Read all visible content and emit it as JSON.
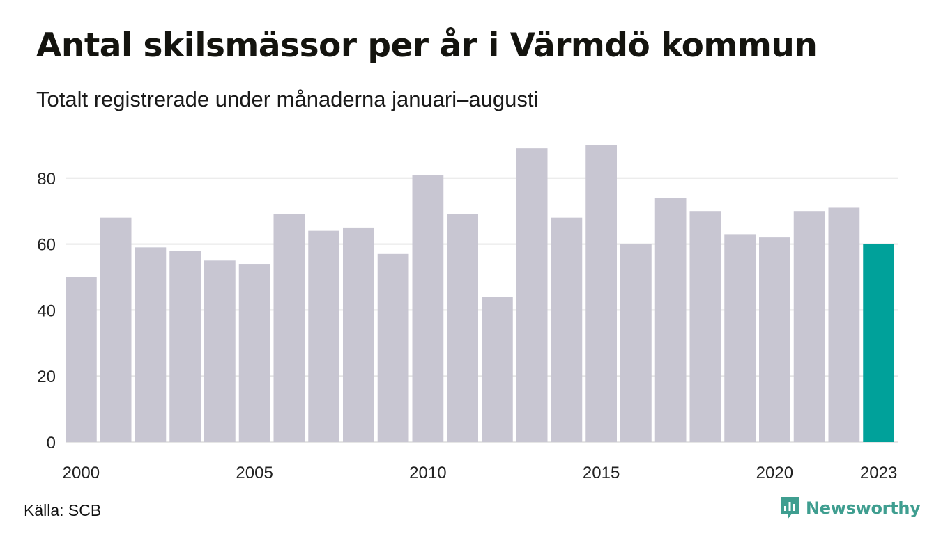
{
  "header": {
    "title": "Antal skilsmässor per år i Värmdö kommun",
    "subtitle": "Totalt registrerade under månaderna januari–augusti"
  },
  "footer": {
    "source": "Källa: SCB",
    "brand": "Newsworthy"
  },
  "colors": {
    "bar": "#c8c6d2",
    "highlight": "#00a19a",
    "grid": "#e5e5e5",
    "brand": "#3f9e90"
  },
  "chart_data": {
    "type": "bar",
    "title": "Antal skilsmässor per år i Värmdö kommun",
    "subtitle": "Totalt registrerade under månaderna januari–augusti",
    "categories": [
      "2000",
      "2001",
      "2002",
      "2003",
      "2004",
      "2005",
      "2006",
      "2007",
      "2008",
      "2009",
      "2010",
      "2011",
      "2012",
      "2013",
      "2014",
      "2015",
      "2016",
      "2017",
      "2018",
      "2019",
      "2020",
      "2021",
      "2022",
      "2023"
    ],
    "values": [
      50,
      68,
      59,
      58,
      55,
      54,
      69,
      64,
      65,
      57,
      81,
      69,
      44,
      89,
      68,
      90,
      60,
      74,
      70,
      63,
      62,
      70,
      71,
      60
    ],
    "highlight": "2023",
    "xtick_labels": [
      "2000",
      "2005",
      "2010",
      "2015",
      "2020",
      "2023"
    ],
    "yticks": [
      0,
      20,
      40,
      60,
      80
    ],
    "ylim": [
      0,
      90
    ],
    "xlabel": "",
    "ylabel": "",
    "grid": true,
    "legend": "none"
  }
}
